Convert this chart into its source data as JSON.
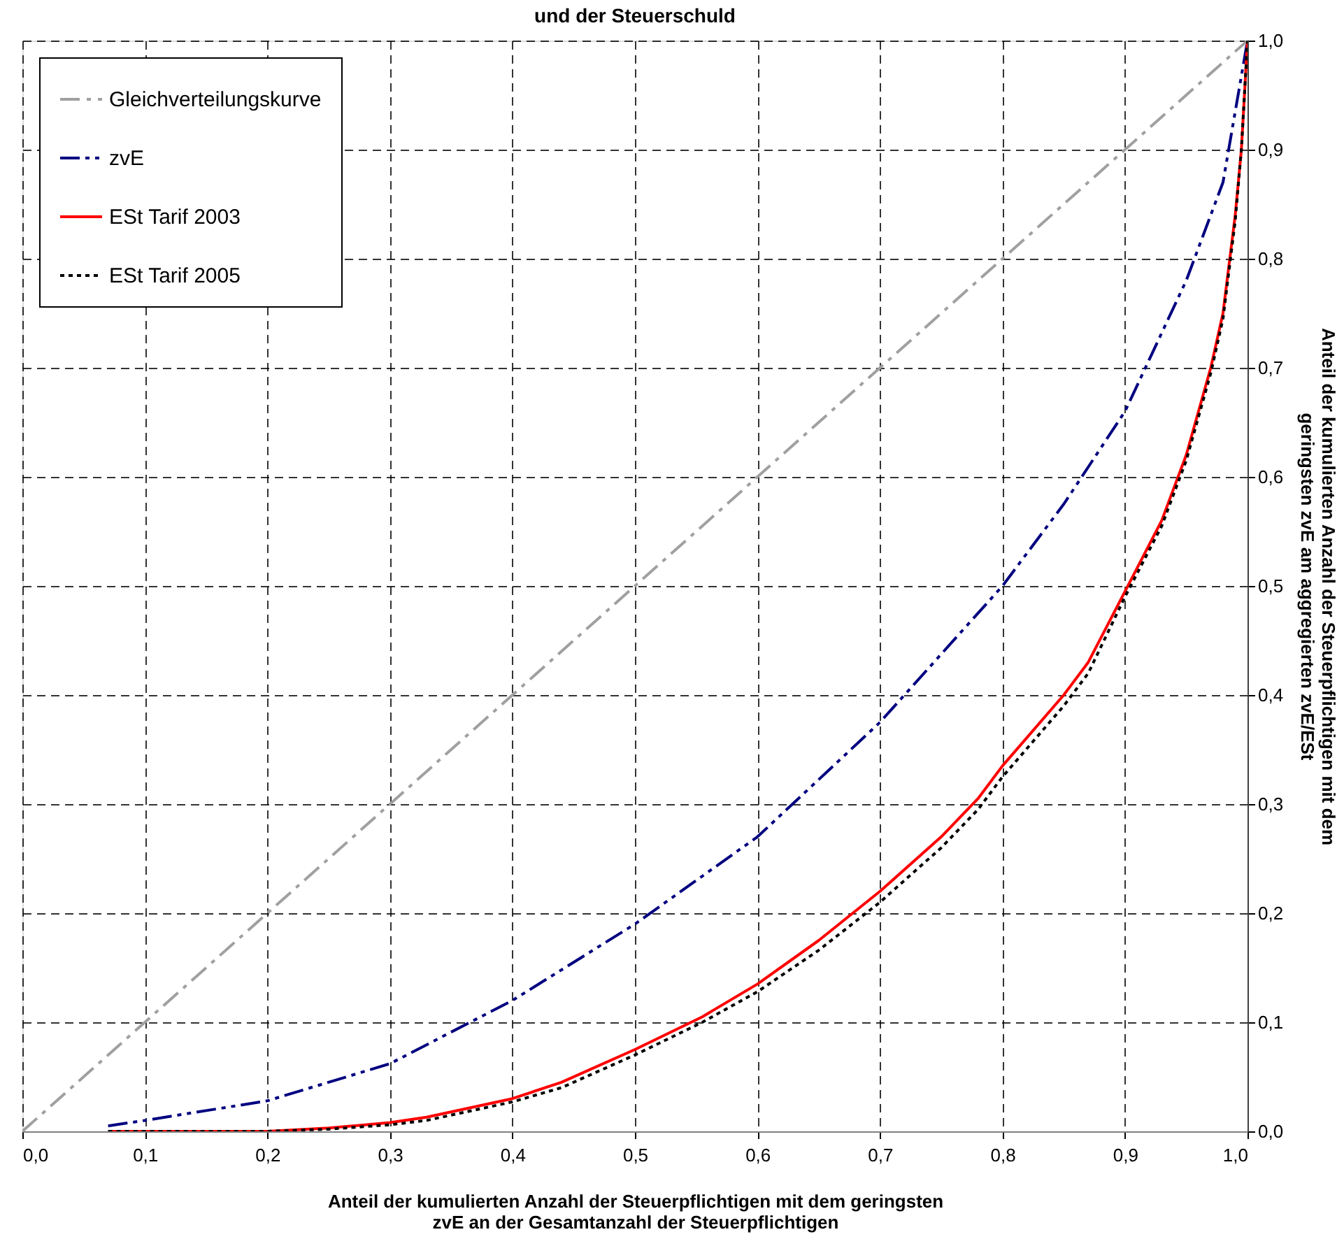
{
  "chart_data": {
    "type": "line",
    "title": "und der Steuerschuld",
    "xlabel": "Anteil der kumulierten Anzahl der Steuerpflichtigen mit dem geringsten\nzvE an der Gesamtanzahl der Steuerpflichtigen",
    "ylabel": "Anteil der kumulierten Anzahl der Steuerpflichtigen mit dem\ngeringsten zvE am aggregierten zvE/ESt",
    "xlim": [
      0,
      1
    ],
    "ylim": [
      0,
      1
    ],
    "xticks": [
      {
        "value": 0,
        "label": "0,0"
      },
      {
        "value": 0.1,
        "label": "0,1"
      },
      {
        "value": 0.2,
        "label": "0,2"
      },
      {
        "value": 0.3,
        "label": "0,3"
      },
      {
        "value": 0.4,
        "label": "0,4"
      },
      {
        "value": 0.5,
        "label": "0,5"
      },
      {
        "value": 0.6,
        "label": "0,6"
      },
      {
        "value": 0.7,
        "label": "0,7"
      },
      {
        "value": 0.8,
        "label": "0,8"
      },
      {
        "value": 0.9,
        "label": "0,9"
      },
      {
        "value": 1,
        "label": "1,0"
      }
    ],
    "yticks": [
      {
        "value": 0,
        "label": "0,0"
      },
      {
        "value": 0.1,
        "label": "0,1"
      },
      {
        "value": 0.2,
        "label": "0,2"
      },
      {
        "value": 0.3,
        "label": "0,3"
      },
      {
        "value": 0.4,
        "label": "0,4"
      },
      {
        "value": 0.5,
        "label": "0,5"
      },
      {
        "value": 0.6,
        "label": "0,6"
      },
      {
        "value": 0.7,
        "label": "0,7"
      },
      {
        "value": 0.8,
        "label": "0,8"
      },
      {
        "value": 0.9,
        "label": "0,9"
      },
      {
        "value": 1,
        "label": "1,0"
      }
    ],
    "grid": true,
    "legend": "top left",
    "marker": "none",
    "series": [
      {
        "name": "Gleichverteilungskurve",
        "color": "#a0a0a0",
        "line_style": "dashdot",
        "x": [
          0,
          1
        ],
        "values": [
          0,
          1
        ]
      },
      {
        "name": "zvE",
        "color": "#000080",
        "line_style": "dashdotdot",
        "x": [
          0.07,
          0.1,
          0.2,
          0.3,
          0.4,
          0.5,
          0.6,
          0.7,
          0.8,
          0.85,
          0.9,
          0.95,
          0.98,
          1.0
        ],
        "values": [
          0.005,
          0.01,
          0.028,
          0.062,
          0.12,
          0.19,
          0.27,
          0.375,
          0.5,
          0.575,
          0.66,
          0.78,
          0.87,
          1.0
        ]
      },
      {
        "name": "ESt Tarif 2003",
        "color": "#ff0000",
        "line_style": "solid",
        "x": [
          0.07,
          0.2,
          0.25,
          0.3,
          0.33,
          0.4,
          0.44,
          0.5,
          0.555,
          0.6,
          0.65,
          0.7,
          0.75,
          0.78,
          0.8,
          0.85,
          0.87,
          0.9,
          0.93,
          0.95,
          0.97,
          0.98,
          0.99,
          0.995,
          1.0
        ],
        "values": [
          0,
          0,
          0.003,
          0.008,
          0.013,
          0.03,
          0.045,
          0.075,
          0.105,
          0.135,
          0.175,
          0.22,
          0.27,
          0.305,
          0.335,
          0.4,
          0.43,
          0.495,
          0.56,
          0.62,
          0.7,
          0.75,
          0.84,
          0.9,
          1.0
        ]
      },
      {
        "name": "ESt Tarif 2005",
        "color": "#000000",
        "line_style": "dotted",
        "x": [
          0.07,
          0.2,
          0.25,
          0.3,
          0.33,
          0.4,
          0.44,
          0.5,
          0.555,
          0.6,
          0.65,
          0.7,
          0.75,
          0.78,
          0.8,
          0.85,
          0.87,
          0.9,
          0.93,
          0.95,
          0.97,
          0.98,
          0.99,
          0.995,
          1.0
        ],
        "values": [
          0,
          0,
          0.002,
          0.006,
          0.01,
          0.027,
          0.04,
          0.07,
          0.1,
          0.128,
          0.166,
          0.21,
          0.26,
          0.295,
          0.325,
          0.39,
          0.42,
          0.49,
          0.555,
          0.615,
          0.695,
          0.745,
          0.835,
          0.9,
          1.0
        ]
      }
    ]
  }
}
